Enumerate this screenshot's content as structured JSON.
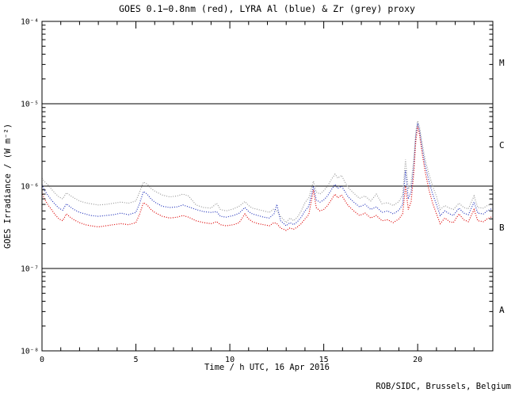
{
  "credit": "ROB/SIDC, Brussels, Belgium",
  "chart_data": {
    "type": "line",
    "title": "GOES 0.1−0.8nm (red), LYRA Al (blue) & Zr (grey) proxy",
    "xlabel": "Time / h UTC, 16 Apr 2016",
    "ylabel": "GOES Irradiance / (W m⁻²)",
    "x_range": [
      0,
      24
    ],
    "x_major_ticks": [
      0,
      5,
      10,
      15,
      20
    ],
    "x_minor_step": 1,
    "y_log_range": [
      -8,
      -4
    ],
    "y_tick_exponents": [
      -4,
      -5,
      -6,
      -7,
      -8
    ],
    "y_tick_labels": [
      "10⁻⁴",
      "10⁻⁵",
      "10⁻⁶",
      "10⁻⁷",
      "10⁻⁸"
    ],
    "grid": false,
    "legend_position": "in-title",
    "class_boundary_lines": [
      1e-05,
      1e-06,
      1e-07
    ],
    "flare_classes": [
      {
        "label": "M",
        "log_center": -4.5
      },
      {
        "label": "C",
        "log_center": -5.5
      },
      {
        "label": "B",
        "log_center": -6.5
      },
      {
        "label": "A",
        "log_center": -7.5
      }
    ],
    "x": [
      0,
      0.1,
      0.3,
      0.5,
      0.7,
      0.9,
      1.1,
      1.3,
      1.5,
      1.7,
      2.0,
      2.3,
      2.6,
      3.0,
      3.4,
      3.8,
      4.2,
      4.6,
      5.0,
      5.2,
      5.4,
      5.6,
      5.8,
      6.0,
      6.4,
      6.8,
      7.2,
      7.5,
      7.8,
      8.2,
      8.6,
      9.0,
      9.3,
      9.5,
      9.8,
      10.2,
      10.5,
      10.8,
      11.0,
      11.2,
      11.5,
      11.8,
      12.1,
      12.35,
      12.5,
      12.7,
      13.0,
      13.2,
      13.4,
      13.6,
      13.8,
      14.0,
      14.2,
      14.45,
      14.6,
      14.8,
      15.0,
      15.2,
      15.4,
      15.6,
      15.75,
      15.95,
      16.1,
      16.3,
      16.6,
      16.9,
      17.2,
      17.5,
      17.8,
      18.1,
      18.4,
      18.7,
      19.0,
      19.2,
      19.35,
      19.5,
      19.65,
      19.8,
      19.9,
      20.0,
      20.1,
      20.25,
      20.4,
      20.6,
      20.8,
      21.0,
      21.2,
      21.45,
      21.7,
      21.9,
      22.2,
      22.45,
      22.7,
      23.0,
      23.2,
      23.5,
      23.7,
      24.0
    ],
    "series": [
      {
        "name": "LYRA Zr proxy",
        "color": "#999999",
        "values": [
          1.25e-06,
          1.15e-06,
          1.05e-06,
          9.2e-07,
          8.2e-07,
          7.4e-07,
          7e-07,
          8.3e-07,
          7.7e-07,
          7.2e-07,
          6.6e-07,
          6.3e-07,
          6.1e-07,
          5.9e-07,
          6e-07,
          6.2e-07,
          6.4e-07,
          6.2e-07,
          6.6e-07,
          8.5e-07,
          1.12e-06,
          1.06e-06,
          9.4e-07,
          8.7e-07,
          7.8e-07,
          7.4e-07,
          7.6e-07,
          8e-07,
          7.6e-07,
          5.9e-07,
          5.5e-07,
          5.4e-07,
          6.2e-07,
          5.2e-07,
          5e-07,
          5.3e-07,
          5.7e-07,
          6.5e-07,
          5.8e-07,
          5.4e-07,
          5.2e-07,
          5e-07,
          4.8e-07,
          5.3e-07,
          5e-07,
          4.3e-07,
          3.6e-07,
          4.1e-07,
          3.8e-07,
          4.2e-07,
          5e-07,
          6.3e-07,
          7.2e-07,
          1.15e-06,
          8.5e-07,
          8e-07,
          8.8e-07,
          1e-06,
          1.2e-06,
          1.4e-06,
          1.25e-06,
          1.35e-06,
          1.15e-06,
          9.6e-07,
          8.2e-07,
          7.1e-07,
          7.6e-07,
          6.6e-07,
          8e-07,
          6.1e-07,
          6.3e-07,
          5.8e-07,
          6.5e-07,
          7.8e-07,
          2.1e-06,
          9.2e-07,
          1.1e-06,
          2.2e-06,
          4.6e-06,
          6.2e-06,
          5.2e-06,
          3.2e-06,
          2.1e-06,
          1.4e-06,
          1e-06,
          7.5e-07,
          5.2e-07,
          5.8e-07,
          5.4e-07,
          5.2e-07,
          6.2e-07,
          5.5e-07,
          5.3e-07,
          7.6e-07,
          5.5e-07,
          5.4e-07,
          5.8e-07,
          6.2e-07
        ]
      },
      {
        "name": "LYRA Al proxy",
        "color": "#2233bb",
        "values": [
          1.05e-06,
          9.2e-07,
          7.8e-07,
          6.8e-07,
          6e-07,
          5.4e-07,
          5.1e-07,
          6.1e-07,
          5.6e-07,
          5.2e-07,
          4.8e-07,
          4.6e-07,
          4.4e-07,
          4.3e-07,
          4.4e-07,
          4.5e-07,
          4.7e-07,
          4.5e-07,
          4.8e-07,
          6.2e-07,
          8.6e-07,
          8e-07,
          7e-07,
          6.4e-07,
          5.7e-07,
          5.5e-07,
          5.6e-07,
          5.9e-07,
          5.6e-07,
          5.2e-07,
          4.9e-07,
          4.8e-07,
          4.9e-07,
          4.3e-07,
          4.2e-07,
          4.4e-07,
          4.7e-07,
          5.5e-07,
          4.9e-07,
          4.6e-07,
          4.4e-07,
          4.2e-07,
          4.1e-07,
          4.6e-07,
          6e-07,
          3.8e-07,
          3.3e-07,
          3.6e-07,
          3.4e-07,
          3.7e-07,
          4.2e-07,
          5e-07,
          5.7e-07,
          1e-06,
          6.8e-07,
          6.4e-07,
          6.8e-07,
          7.6e-07,
          9e-07,
          1.05e-06,
          9.4e-07,
          1e-06,
          8.8e-07,
          7.4e-07,
          6.4e-07,
          5.6e-07,
          6e-07,
          5.2e-07,
          5.6e-07,
          4.8e-07,
          5e-07,
          4.6e-07,
          5.1e-07,
          6e-07,
          1.55e-06,
          7e-07,
          8.5e-07,
          1.8e-06,
          4e-06,
          5.8e-06,
          4.7e-06,
          2.8e-06,
          1.8e-06,
          1.15e-06,
          8e-07,
          6e-07,
          4.4e-07,
          5e-07,
          4.6e-07,
          4.4e-07,
          5.4e-07,
          4.7e-07,
          4.5e-07,
          6.4e-07,
          4.7e-07,
          4.6e-07,
          5e-07,
          5.4e-07
        ]
      },
      {
        "name": "GOES 0.1-0.8nm",
        "color": "#dd0000",
        "values": [
          8.5e-07,
          7.2e-07,
          6e-07,
          5.2e-07,
          4.5e-07,
          4e-07,
          3.8e-07,
          4.6e-07,
          4.2e-07,
          3.9e-07,
          3.6e-07,
          3.4e-07,
          3.3e-07,
          3.2e-07,
          3.3e-07,
          3.4e-07,
          3.5e-07,
          3.4e-07,
          3.6e-07,
          4.6e-07,
          6.3e-07,
          5.9e-07,
          5.2e-07,
          4.8e-07,
          4.3e-07,
          4.1e-07,
          4.2e-07,
          4.4e-07,
          4.2e-07,
          3.8e-07,
          3.6e-07,
          3.5e-07,
          3.7e-07,
          3.4e-07,
          3.3e-07,
          3.4e-07,
          3.6e-07,
          4.6e-07,
          4e-07,
          3.7e-07,
          3.5e-07,
          3.4e-07,
          3.3e-07,
          3.6e-07,
          3.5e-07,
          3.1e-07,
          2.9e-07,
          3.1e-07,
          3e-07,
          3.2e-07,
          3.5e-07,
          4e-07,
          4.5e-07,
          9e-07,
          5.5e-07,
          5e-07,
          5.2e-07,
          5.8e-07,
          6.8e-07,
          8e-07,
          7.2e-07,
          7.8e-07,
          6.8e-07,
          5.8e-07,
          5e-07,
          4.4e-07,
          4.7e-07,
          4.1e-07,
          4.4e-07,
          3.8e-07,
          3.9e-07,
          3.6e-07,
          4e-07,
          4.6e-07,
          1e-06,
          5.2e-07,
          6.5e-07,
          1.5e-06,
          3.5e-06,
          5.3e-06,
          4.2e-06,
          2.4e-06,
          1.5e-06,
          9e-07,
          6.2e-07,
          4.6e-07,
          3.5e-07,
          4.1e-07,
          3.7e-07,
          3.6e-07,
          4.6e-07,
          3.9e-07,
          3.7e-07,
          5.2e-07,
          3.8e-07,
          3.7e-07,
          4e-07,
          4.3e-07
        ]
      }
    ]
  }
}
